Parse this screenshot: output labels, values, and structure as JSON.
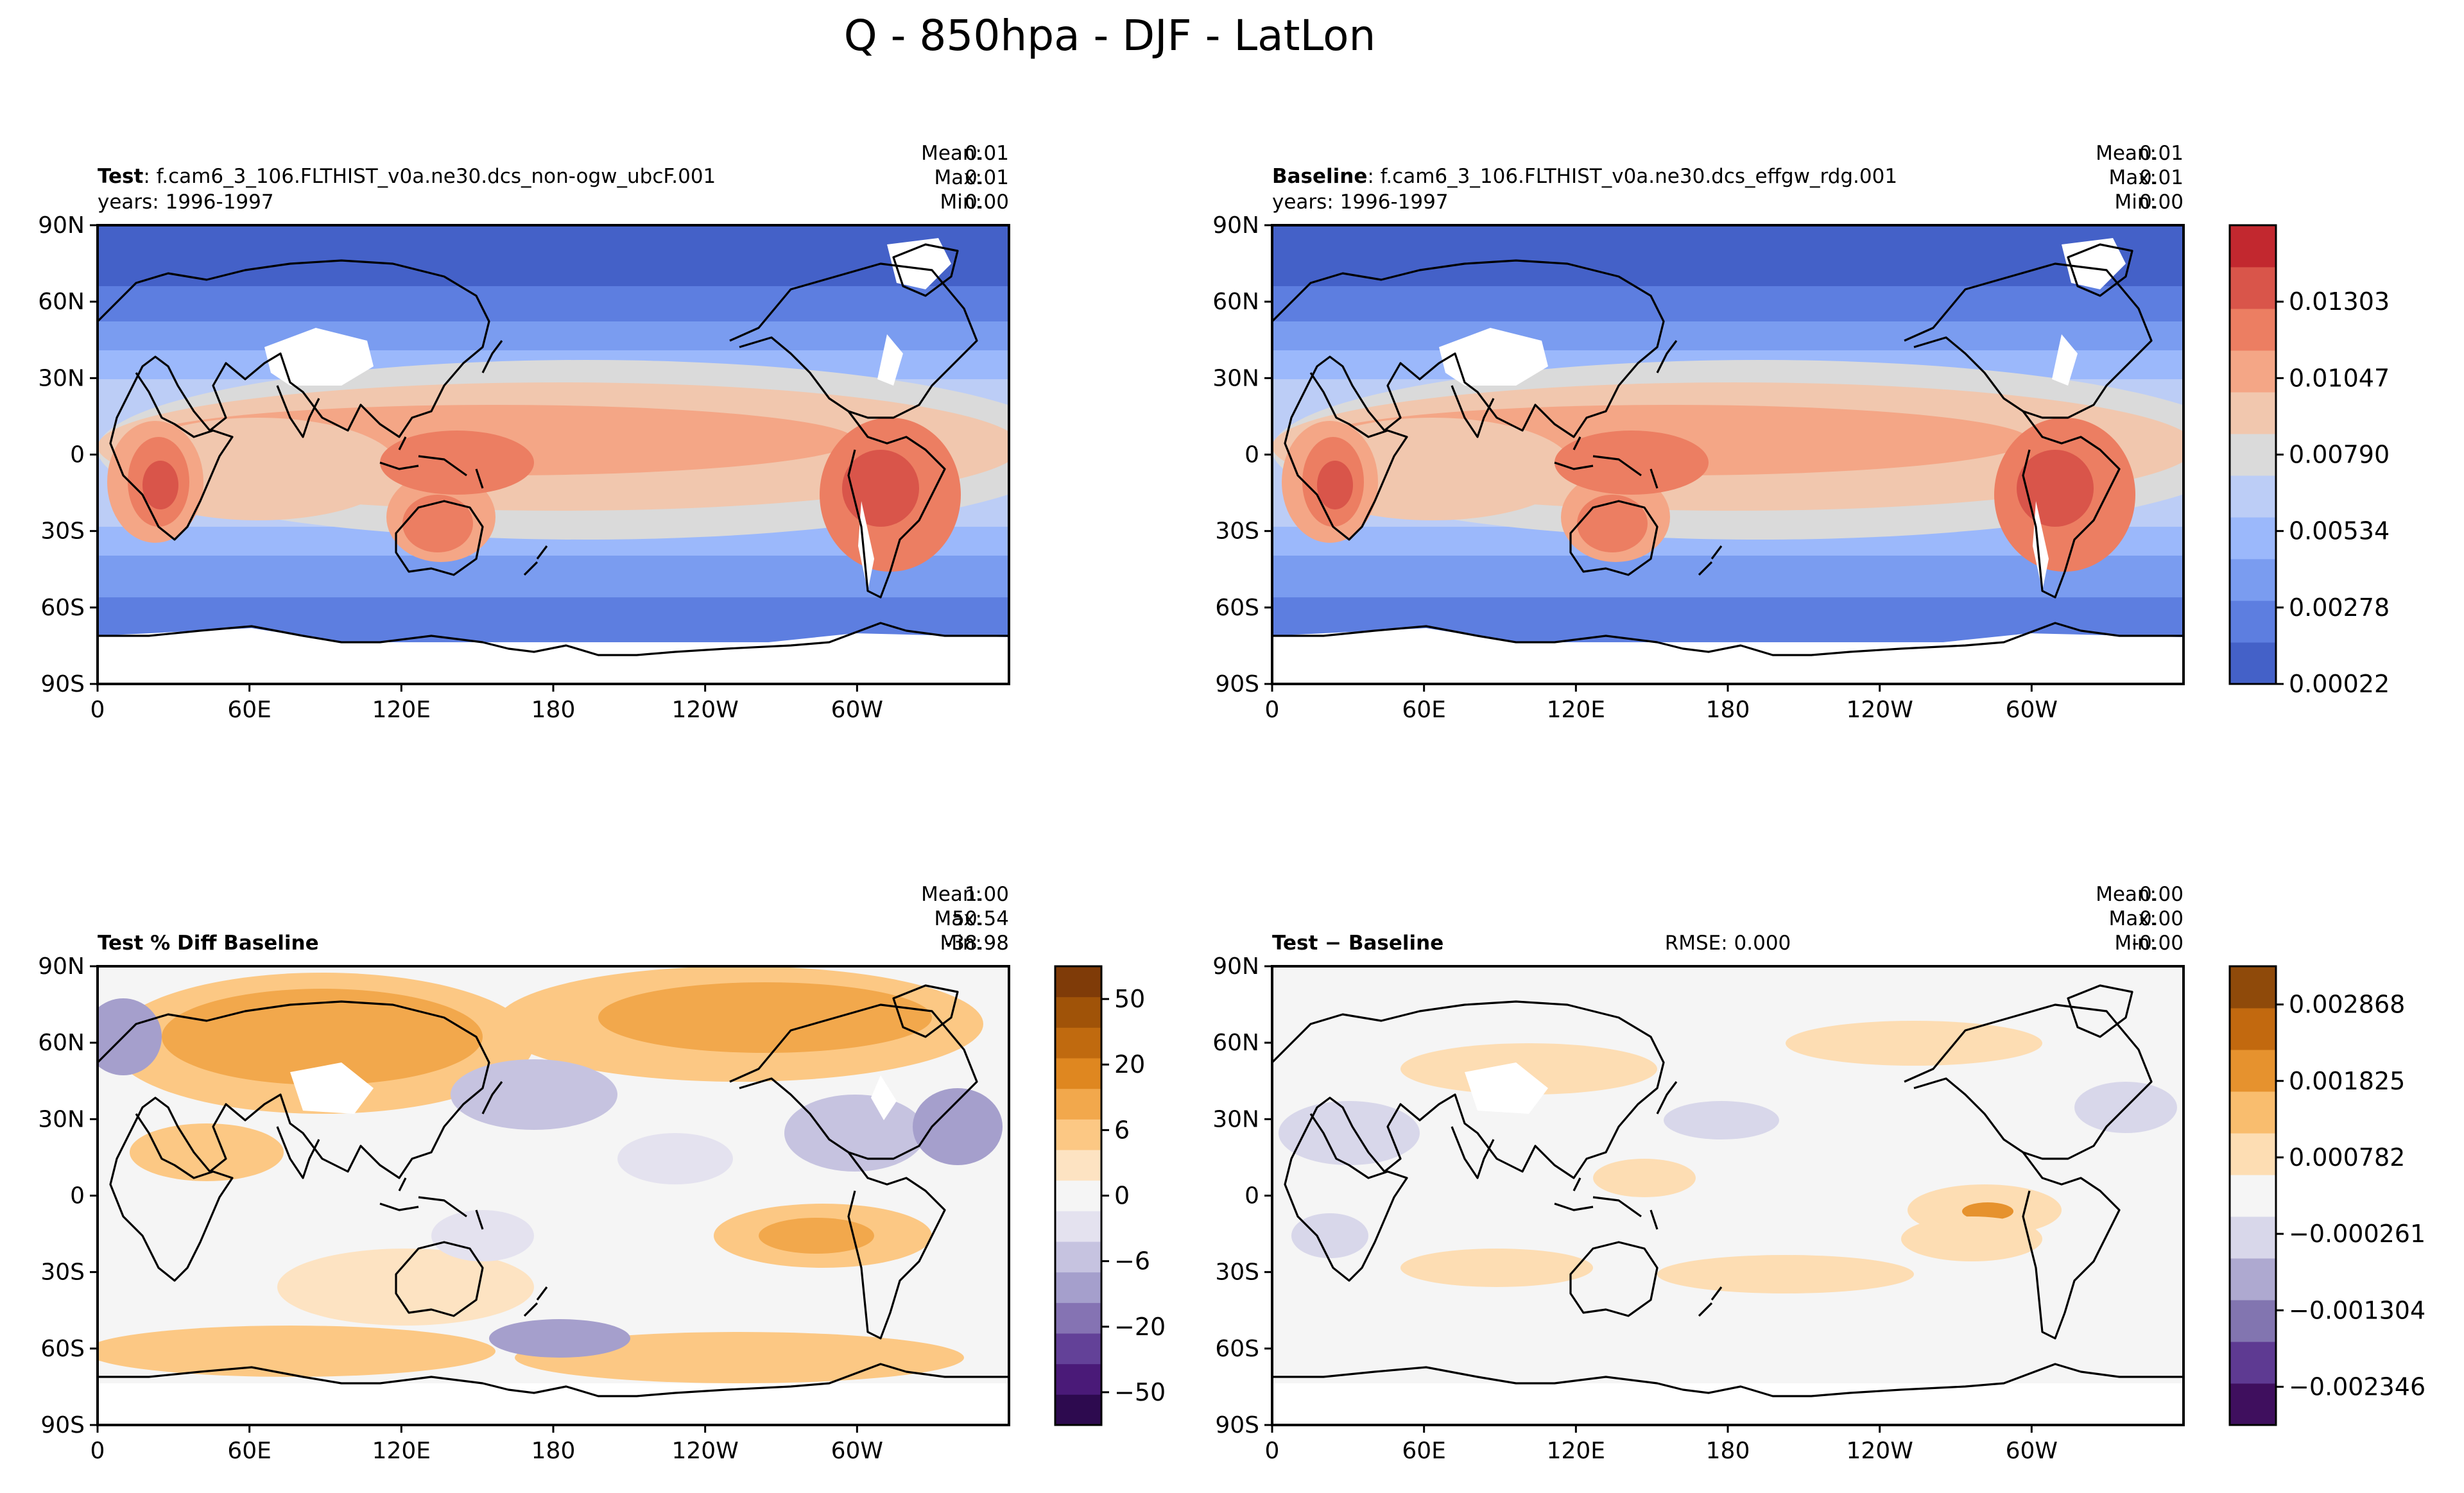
{
  "figure": {
    "title": "Q - 850hpa - DJF - LatLon"
  },
  "axes": {
    "lat_ticks": [
      "90N",
      "60N",
      "30N",
      "0",
      "30S",
      "60S",
      "90S"
    ],
    "lon_ticks": [
      "0",
      "60E",
      "120E",
      "180",
      "120W",
      "60W"
    ]
  },
  "panels": [
    {
      "id": "test",
      "title_bold": "Test",
      "title_rest": ": f.cam6_3_106.FLTHIST_v0a.ne30.dcs_non-ogw_ubcF.001",
      "years": "years: 1996-1997",
      "stats": [
        {
          "label": "Mean:",
          "value": "0.01"
        },
        {
          "label": "Max:",
          "value": "0.01"
        },
        {
          "label": "Min:",
          "value": "0.00"
        }
      ],
      "rmse": ""
    },
    {
      "id": "baseline",
      "title_bold": "Baseline",
      "title_rest": ": f.cam6_3_106.FLTHIST_v0a.ne30.dcs_effgw_rdg.001",
      "years": "years: 1996-1997",
      "stats": [
        {
          "label": "Mean:",
          "value": "0.01"
        },
        {
          "label": "Max:",
          "value": "0.01"
        },
        {
          "label": "Min:",
          "value": "0.00"
        }
      ],
      "rmse": ""
    },
    {
      "id": "pctdiff",
      "title_bold": "Test % Diff Baseline",
      "title_rest": "",
      "years": "",
      "stats": [
        {
          "label": "Mean:",
          "value": "1.00"
        },
        {
          "label": "Max:",
          "value": "50.54"
        },
        {
          "label": "Min:",
          "value": "-38.98"
        }
      ],
      "rmse": ""
    },
    {
      "id": "diff",
      "title_bold": "Test − Baseline",
      "title_rest": "",
      "years": "",
      "stats": [
        {
          "label": "Mean:",
          "value": "0.00"
        },
        {
          "label": "Max:",
          "value": "0.00"
        },
        {
          "label": "Min:",
          "value": "-0.00"
        }
      ],
      "rmse": "RMSE: 0.000"
    }
  ],
  "colorbars": [
    {
      "id": "q",
      "labels": [
        "0.00022",
        "0.00278",
        "0.00534",
        "0.00790",
        "0.01047",
        "0.01303"
      ],
      "colors": [
        "#4461c8",
        "#5d7ee0",
        "#7a9cf0",
        "#9bb8fb",
        "#bccdf6",
        "#dadada",
        "#f1c7ae",
        "#f4a686",
        "#ec7e62",
        "#d9554a",
        "#c2282f"
      ]
    },
    {
      "id": "pct",
      "labels": [
        "−50",
        "−20",
        "−6",
        "0",
        "6",
        "20",
        "50"
      ],
      "colors": [
        "#2d0a4f",
        "#4a1a78",
        "#634198",
        "#8573b3",
        "#a59fcc",
        "#c6c3e0",
        "#e4e2ef",
        "#f5f5f5",
        "#fde3c2",
        "#fcc884",
        "#f2a84c",
        "#df8720",
        "#c06a0f",
        "#a05308",
        "#7f3b08"
      ]
    },
    {
      "id": "absdiff",
      "labels": [
        "−0.002346",
        "−0.001304",
        "−0.000261",
        "0.000782",
        "0.001825",
        "0.002868"
      ],
      "colors": [
        "#3f0f5e",
        "#5e3a92",
        "#8275b0",
        "#aea9d0",
        "#d8d7ea",
        "#f5f5f5",
        "#fdddb3",
        "#f9bd6e",
        "#e6922e",
        "#c2690f",
        "#8f4a0a"
      ]
    }
  ],
  "chart_data": [
    {
      "type": "heatmap",
      "name": "Test",
      "variable": "Q",
      "level": "850hpa",
      "season": "DJF",
      "x_ticks": [
        "0",
        "60E",
        "120E",
        "180",
        "120W",
        "60W"
      ],
      "y_ticks": [
        "90N",
        "60N",
        "30N",
        "0",
        "30S",
        "60S",
        "90S"
      ],
      "colorbar_levels": [
        0.00022,
        0.00278,
        0.00534,
        0.0079,
        0.01047,
        0.01303
      ],
      "mean": 0.01,
      "max": 0.01,
      "min": 0.0
    },
    {
      "type": "heatmap",
      "name": "Baseline",
      "variable": "Q",
      "level": "850hpa",
      "season": "DJF",
      "x_ticks": [
        "0",
        "60E",
        "120E",
        "180",
        "120W",
        "60W"
      ],
      "y_ticks": [
        "90N",
        "60N",
        "30N",
        "0",
        "30S",
        "60S",
        "90S"
      ],
      "colorbar_levels": [
        0.00022,
        0.00278,
        0.00534,
        0.0079,
        0.01047,
        0.01303
      ],
      "mean": 0.01,
      "max": 0.01,
      "min": 0.0
    },
    {
      "type": "heatmap",
      "name": "Test % Diff Baseline",
      "x_ticks": [
        "0",
        "60E",
        "120E",
        "180",
        "120W",
        "60W"
      ],
      "y_ticks": [
        "90N",
        "60N",
        "30N",
        "0",
        "30S",
        "60S",
        "90S"
      ],
      "colorbar_levels": [
        -50,
        -20,
        -6,
        0,
        6,
        20,
        50
      ],
      "mean": 1.0,
      "max": 50.54,
      "min": -38.98
    },
    {
      "type": "heatmap",
      "name": "Test − Baseline",
      "x_ticks": [
        "0",
        "60E",
        "120E",
        "180",
        "120W",
        "60W"
      ],
      "y_ticks": [
        "90N",
        "60N",
        "30N",
        "0",
        "30S",
        "60S",
        "90S"
      ],
      "colorbar_levels": [
        -0.002346,
        -0.001304,
        -0.000261,
        0.000782,
        0.001825,
        0.002868
      ],
      "mean": 0.0,
      "max": 0.0,
      "min": -0.0,
      "rmse": 0.0
    }
  ]
}
